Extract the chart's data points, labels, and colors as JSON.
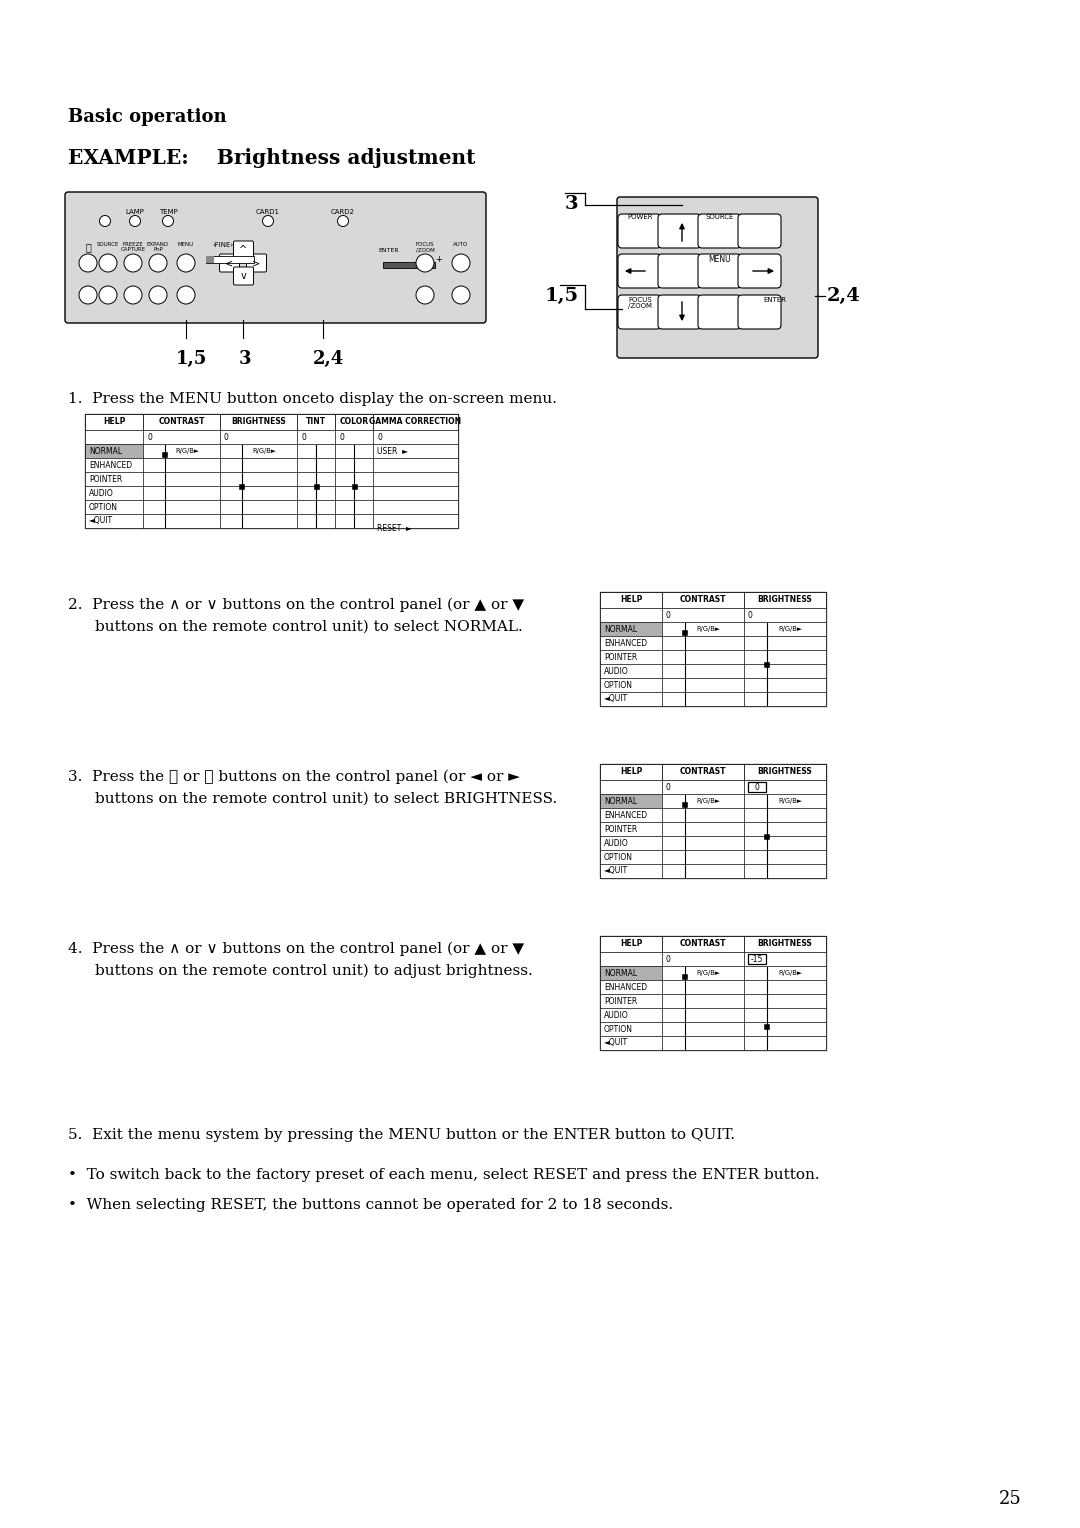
{
  "title_basic": "Basic operation",
  "title_example": "EXAMPLE:    Brightness adjustment",
  "step1_text": "1.  Press the MENU button onceto display the on-screen menu.",
  "step2_text_a": "2.  Press the ∧ or ∨ buttons on the control panel (or ▲ or ▼",
  "step2_text_b": "buttons on the remote control unit) to select NORMAL.",
  "step3_text_a": "3.  Press the 〈 or 〉 buttons on the control panel (or ◄ or ►",
  "step3_text_b": "buttons on the remote control unit) to select BRIGHTNESS.",
  "step4_text_a": "4.  Press the ∧ or ∨ buttons on the control panel (or ▲ or ▼",
  "step4_text_b": "buttons on the remote control unit) to adjust brightness.",
  "step5_text": "5.  Exit the menu system by pressing the MENU button or the ENTER button to QUIT.",
  "bullet1": "To switch back to the factory preset of each menu, select RESET and press the ENTER button.",
  "bullet2": "When selecting RESET, the buttons cannot be operated for 2 to 18 seconds.",
  "page_number": "25",
  "bg_color": "#ffffff",
  "panel_bg": "#d8d8d8",
  "normal_highlight": "#b0b0b0"
}
